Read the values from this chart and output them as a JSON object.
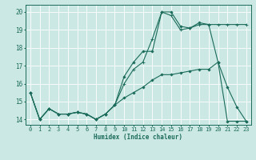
{
  "xlabel": "Humidex (Indice chaleur)",
  "bg_color": "#cce8e4",
  "grid_color": "#ffffff",
  "line_color": "#1a6b5a",
  "xlim": [
    -0.5,
    23.5
  ],
  "ylim": [
    13.7,
    20.4
  ],
  "yticks": [
    14,
    15,
    16,
    17,
    18,
    19,
    20
  ],
  "xticks": [
    0,
    1,
    2,
    3,
    4,
    5,
    6,
    7,
    8,
    9,
    10,
    11,
    12,
    13,
    14,
    15,
    16,
    17,
    18,
    19,
    20,
    21,
    22,
    23
  ],
  "line1_x": [
    0,
    1,
    2,
    3,
    4,
    5,
    6,
    7,
    8,
    9,
    10,
    11,
    12,
    13,
    14,
    15,
    16,
    17,
    18,
    19,
    20,
    21,
    22,
    23
  ],
  "line1_y": [
    15.5,
    14.0,
    14.6,
    14.3,
    14.3,
    14.4,
    14.3,
    14.0,
    14.3,
    14.8,
    16.4,
    17.2,
    17.8,
    17.8,
    20.0,
    20.0,
    19.2,
    19.1,
    19.4,
    19.3,
    17.2,
    15.8,
    14.7,
    13.9
  ],
  "line2_x": [
    0,
    1,
    2,
    3,
    4,
    5,
    6,
    7,
    8,
    9,
    10,
    11,
    12,
    13,
    14,
    15,
    16,
    17,
    18,
    19,
    20,
    21,
    22,
    23
  ],
  "line2_y": [
    15.5,
    14.0,
    14.6,
    14.3,
    14.3,
    14.4,
    14.3,
    14.0,
    14.3,
    14.8,
    16.0,
    16.8,
    17.2,
    18.5,
    20.0,
    19.8,
    19.0,
    19.1,
    19.3,
    19.3,
    19.3,
    19.3,
    19.3,
    19.3
  ],
  "line3_x": [
    0,
    1,
    2,
    3,
    4,
    5,
    6,
    7,
    8,
    9,
    10,
    11,
    12,
    13,
    14,
    15,
    16,
    17,
    18,
    19,
    20,
    21,
    22,
    23
  ],
  "line3_y": [
    15.5,
    14.0,
    14.6,
    14.3,
    14.3,
    14.4,
    14.3,
    14.0,
    14.3,
    14.8,
    15.2,
    15.5,
    15.8,
    16.2,
    16.5,
    16.5,
    16.6,
    16.7,
    16.8,
    16.8,
    17.2,
    13.9,
    13.9,
    13.9
  ],
  "xlabel_fontsize": 5.5,
  "tick_fontsize": 5.0
}
